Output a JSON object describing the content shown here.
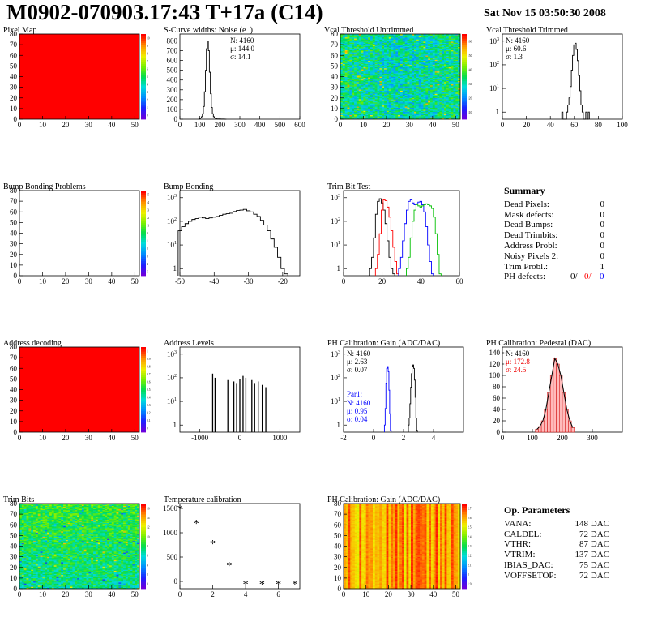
{
  "header": {
    "title": "M0902-070903.17:43 T+17a (C14)",
    "date": "Sat Nov 15 03:50:30 2008"
  },
  "chart_data": [
    {
      "id": "pixel-map",
      "type": "heatmap",
      "title": "Pixel Map",
      "xlim": [
        0,
        52
      ],
      "ylim": [
        0,
        80
      ],
      "xticks": [
        0,
        10,
        20,
        30,
        40,
        50
      ],
      "yticks": [
        0,
        10,
        20,
        30,
        40,
        50,
        60,
        70,
        80
      ],
      "fill": "uniform",
      "fill_value": 10,
      "color_scale": [
        0,
        10
      ],
      "colorbar_ticks": [
        0,
        1,
        2,
        3,
        4,
        5,
        6,
        7,
        8,
        9,
        10
      ],
      "colors": {
        "fill": "#ff0000"
      }
    },
    {
      "id": "scurve-noise",
      "type": "line",
      "title": "S-Curve widths: Noise (e⁻)",
      "xlim": [
        0,
        600
      ],
      "ylim": [
        0,
        870
      ],
      "xticks": [
        0,
        100,
        200,
        300,
        400,
        500,
        600
      ],
      "yticks": [
        0,
        100,
        200,
        300,
        400,
        500,
        600,
        700,
        800
      ],
      "stats": [
        "N: 4160",
        "μ: 144.0",
        "σ: 14.1"
      ],
      "x": [
        95,
        100,
        105,
        110,
        115,
        120,
        125,
        130,
        135,
        140,
        145,
        150,
        155,
        160,
        165,
        170,
        175,
        180,
        190,
        200,
        210,
        220,
        230
      ],
      "y": [
        0,
        5,
        12,
        25,
        55,
        130,
        280,
        500,
        720,
        800,
        700,
        480,
        260,
        120,
        55,
        25,
        12,
        5,
        3,
        2,
        1,
        1,
        0
      ]
    },
    {
      "id": "vcal-untrimmed",
      "type": "heatmap",
      "title": "Vcal Threshold Untrimmed",
      "xlim": [
        0,
        52
      ],
      "ylim": [
        0,
        80
      ],
      "xticks": [
        0,
        10,
        20,
        30,
        40,
        50
      ],
      "yticks": [
        0,
        10,
        20,
        30,
        40,
        50,
        60,
        70,
        80
      ],
      "fill": "noise-blue-green",
      "color_scale": [
        100,
        165
      ],
      "colorbar_ticks": [
        "110",
        "120",
        "130",
        "140",
        "150",
        "160"
      ]
    },
    {
      "id": "vcal-trimmed",
      "type": "line",
      "title": "Vcal Threshold Trimmed",
      "log_y": true,
      "xlim": [
        0,
        100
      ],
      "ylim": [
        0.5,
        2000
      ],
      "xticks": [
        0,
        20,
        40,
        60,
        80,
        100
      ],
      "yticks": [
        1,
        10,
        100,
        1000
      ],
      "stats": [
        "N: 4160",
        "μ: 60.6",
        "σ:  1.3"
      ],
      "x": [
        50,
        51,
        52,
        53,
        54,
        55,
        56,
        57,
        58,
        59,
        60,
        61,
        62,
        63,
        64,
        65,
        66,
        67,
        68,
        69,
        70,
        71,
        72
      ],
      "y": [
        1,
        0,
        0,
        0,
        1,
        2,
        4,
        12,
        60,
        250,
        700,
        820,
        450,
        150,
        35,
        8,
        2,
        1,
        0,
        0,
        1,
        0,
        1
      ]
    },
    {
      "id": "bump-problems",
      "type": "heatmap",
      "title": "Bump Bonding Problems",
      "xlim": [
        0,
        52
      ],
      "ylim": [
        0,
        80
      ],
      "xticks": [
        0,
        10,
        20,
        30,
        40,
        50
      ],
      "yticks": [
        0,
        10,
        20,
        30,
        40,
        50,
        60,
        70,
        80
      ],
      "fill": "empty",
      "color_scale": [
        -5,
        5
      ],
      "colorbar_ticks": [
        "5",
        "4",
        "3",
        "2",
        "1",
        "0",
        "-1",
        "-2",
        "-3",
        "-4",
        "-5"
      ]
    },
    {
      "id": "bump-bonding",
      "type": "line",
      "title": "Bump Bonding",
      "log_y": true,
      "xlim": [
        -50,
        -15
      ],
      "ylim": [
        0.5,
        2000
      ],
      "xticks": [
        -50,
        -40,
        -30,
        -20
      ],
      "yticks": [
        1,
        10,
        100,
        1000
      ],
      "x": [
        -50,
        -49,
        -48,
        -47,
        -46,
        -45,
        -44,
        -43,
        -42,
        -41,
        -40,
        -39,
        -38,
        -37,
        -36,
        -35,
        -34,
        -33,
        -32,
        -31,
        -30,
        -29,
        -28,
        -27,
        -26,
        -25,
        -24,
        -23,
        -22,
        -21,
        -20,
        -19
      ],
      "y": [
        40,
        60,
        80,
        100,
        120,
        130,
        150,
        140,
        130,
        140,
        150,
        160,
        180,
        200,
        210,
        220,
        260,
        290,
        300,
        320,
        280,
        250,
        200,
        160,
        110,
        70,
        40,
        18,
        8,
        3,
        1,
        0.6
      ]
    },
    {
      "id": "trim-bit-test",
      "type": "line",
      "title": "Trim Bit Test",
      "log_y": true,
      "xlim": [
        0,
        60
      ],
      "ylim": [
        0.5,
        2000
      ],
      "xticks": [
        0,
        20,
        40,
        60
      ],
      "yticks": [
        1,
        10,
        100,
        1000
      ],
      "series": [
        {
          "color": "#000000",
          "x": [
            14,
            15,
            16,
            17,
            18,
            19,
            20,
            21,
            22,
            23,
            24,
            25,
            26
          ],
          "y": [
            1,
            3,
            20,
            200,
            700,
            900,
            600,
            300,
            80,
            15,
            3,
            1,
            0.6
          ]
        },
        {
          "color": "#ff0000",
          "x": [
            17,
            18,
            19,
            20,
            21,
            22,
            23,
            24,
            25,
            26,
            27,
            28
          ],
          "y": [
            1,
            4,
            30,
            300,
            800,
            750,
            400,
            150,
            40,
            8,
            2,
            0.6
          ]
        },
        {
          "color": "#0000ff",
          "x": [
            29,
            30,
            31,
            32,
            33,
            34,
            35,
            36,
            37,
            38,
            39,
            40,
            41,
            42,
            43,
            44,
            45,
            46
          ],
          "y": [
            1,
            3,
            15,
            80,
            300,
            700,
            800,
            600,
            500,
            550,
            650,
            700,
            500,
            250,
            60,
            10,
            2,
            0.6
          ]
        },
        {
          "color": "#00c000",
          "x": [
            33,
            34,
            35,
            36,
            37,
            38,
            39,
            40,
            41,
            42,
            43,
            44,
            45,
            46,
            47,
            48,
            49,
            50
          ],
          "y": [
            1,
            3,
            20,
            100,
            300,
            500,
            450,
            400,
            450,
            500,
            550,
            500,
            450,
            350,
            150,
            30,
            4,
            0.6
          ]
        }
      ]
    },
    {
      "id": "address-decoding",
      "type": "heatmap",
      "title": "Address decoding",
      "xlim": [
        0,
        52
      ],
      "ylim": [
        0,
        80
      ],
      "xticks": [
        0,
        10,
        20,
        30,
        40,
        50
      ],
      "yticks": [
        0,
        10,
        20,
        30,
        40,
        50,
        60,
        70,
        80
      ],
      "fill": "uniform",
      "fill_value": 1,
      "color_scale": [
        0,
        1
      ],
      "colorbar_ticks": [
        "0",
        "0.1",
        "0.2",
        "0.3",
        "0.4",
        "0.5",
        "0.6",
        "0.7",
        "0.8",
        "0.9",
        "1"
      ],
      "colors": {
        "fill": "#ff0000"
      }
    },
    {
      "id": "address-levels",
      "type": "bar",
      "title": "Address Levels",
      "log_y": true,
      "xlim": [
        -1500,
        1500
      ],
      "ylim": [
        0.5,
        2000
      ],
      "xticks": [
        -1000,
        0,
        1000
      ],
      "yticks": [
        1,
        10,
        100,
        1000
      ],
      "x": [
        -680,
        -620,
        -300,
        -150,
        -80,
        0,
        80,
        150,
        300,
        370,
        460,
        560,
        650
      ],
      "y": [
        150,
        100,
        80,
        70,
        60,
        90,
        120,
        100,
        80,
        60,
        70,
        50,
        40
      ]
    },
    {
      "id": "ph-gain",
      "type": "line",
      "title": "PH Calibration: Gain (ADC/DAC)",
      "log_y": true,
      "xlim": [
        -2,
        6
      ],
      "ylim": [
        0.5,
        2000
      ],
      "xticks": [
        -2,
        0,
        2,
        4
      ],
      "yticks": [
        1,
        10,
        100,
        1000
      ],
      "stats": [
        "N: 4160",
        "μ: 2.63",
        "σ: 0.07"
      ],
      "stats2": {
        "label": "Par1:",
        "lines": [
          "N: 4160",
          "μ: 0.95",
          "σ: 0.04"
        ]
      },
      "series": [
        {
          "color": "#0000ff",
          "x": [
            0.75,
            0.8,
            0.85,
            0.9,
            0.95,
            1.0,
            1.05,
            1.1,
            1.15
          ],
          "y": [
            1,
            5,
            60,
            250,
            300,
            180,
            30,
            3,
            0.6
          ]
        },
        {
          "color": "#000000",
          "x": [
            2.35,
            2.4,
            2.45,
            2.5,
            2.55,
            2.6,
            2.65,
            2.7,
            2.75,
            2.8,
            2.85,
            2.9
          ],
          "y": [
            1,
            2,
            8,
            40,
            150,
            300,
            350,
            250,
            80,
            15,
            2,
            0.6
          ]
        }
      ]
    },
    {
      "id": "ph-pedestal",
      "type": "bar",
      "title": "PH Calibration: Pedestal (DAC)",
      "xlim": [
        0,
        400
      ],
      "ylim": [
        0,
        150
      ],
      "xticks": [
        0,
        100,
        200,
        300
      ],
      "yticks": [
        0,
        20,
        40,
        60,
        80,
        100,
        120,
        140
      ],
      "stats": [
        "N: 4160",
        "μ: 172.8",
        "σ: 24.5"
      ],
      "x": [
        115,
        125,
        135,
        145,
        155,
        165,
        175,
        185,
        195,
        205,
        215,
        225,
        235
      ],
      "y": [
        5,
        10,
        20,
        40,
        70,
        100,
        130,
        120,
        100,
        70,
        40,
        20,
        8
      ]
    },
    {
      "id": "trim-bits",
      "type": "heatmap",
      "title": "Trim Bits",
      "xlim": [
        0,
        52
      ],
      "ylim": [
        0,
        80
      ],
      "xticks": [
        0,
        10,
        20,
        30,
        40,
        50
      ],
      "yticks": [
        0,
        10,
        20,
        30,
        40,
        50,
        60,
        70,
        80
      ],
      "fill": "noise-green-yellow",
      "color_scale": [
        0,
        16
      ],
      "colorbar_ticks": [
        "0",
        "2",
        "4",
        "6",
        "8",
        "10",
        "12",
        "14",
        "16"
      ]
    },
    {
      "id": "temperature-calibration",
      "type": "scatter",
      "title": "Temperature calibration",
      "xlim": [
        0,
        7.3
      ],
      "ylim": [
        -150,
        1600
      ],
      "xticks": [
        0,
        2,
        4,
        6
      ],
      "yticks": [
        0,
        500,
        1000,
        1500
      ],
      "x": [
        0,
        1,
        2,
        3,
        4,
        5,
        6,
        7
      ],
      "y": [
        1500,
        1200,
        780,
        330,
        -50,
        -50,
        -50,
        -50
      ]
    },
    {
      "id": "ph-gain-map",
      "type": "heatmap",
      "title": "PH Calibration: Gain (ADC/DAC)",
      "xlim": [
        0,
        52
      ],
      "ylim": [
        0,
        80
      ],
      "xticks": [
        0,
        10,
        20,
        30,
        40,
        50
      ],
      "yticks": [
        0,
        10,
        20,
        30,
        40,
        50,
        60,
        70,
        80
      ],
      "fill": "column-stripes-red-orange",
      "color_scale": [
        1.8,
        2.8
      ],
      "colorbar_ticks": [
        "1.9",
        "2",
        "2.1",
        "2.2",
        "2.3",
        "2.4",
        "2.5",
        "2.6",
        "2.7"
      ]
    }
  ],
  "summary": {
    "title": "Summary",
    "rows": [
      {
        "label": "Dead Pixels:",
        "value": "0"
      },
      {
        "label": "Mask defects:",
        "value": "0"
      },
      {
        "label": "Dead Bumps:",
        "value": "0"
      },
      {
        "label": "Dead Trimbits:",
        "value": "0"
      },
      {
        "label": "Address Probl:",
        "value": "0"
      },
      {
        "label": "Noisy Pixels 2:",
        "value": "0"
      },
      {
        "label": "Trim Probl.:",
        "value": "1"
      }
    ],
    "ph_defects": {
      "label": "PH defects:",
      "v1": "0/",
      "v2": "0/",
      "v3": "0",
      "c1": "#000000",
      "c2": "#ff0000",
      "c3": "#0000ff"
    }
  },
  "op_parameters": {
    "title": "Op. Parameters",
    "rows": [
      {
        "label": "VANA:",
        "value": "148 DAC"
      },
      {
        "label": "CALDEL:",
        "value": "72 DAC"
      },
      {
        "label": "VTHR:",
        "value": "87 DAC"
      },
      {
        "label": "VTRIM:",
        "value": "137 DAC"
      },
      {
        "label": "IBIAS_DAC:",
        "value": "75 DAC"
      },
      {
        "label": "VOFFSETOP:",
        "value": "72 DAC"
      }
    ]
  }
}
